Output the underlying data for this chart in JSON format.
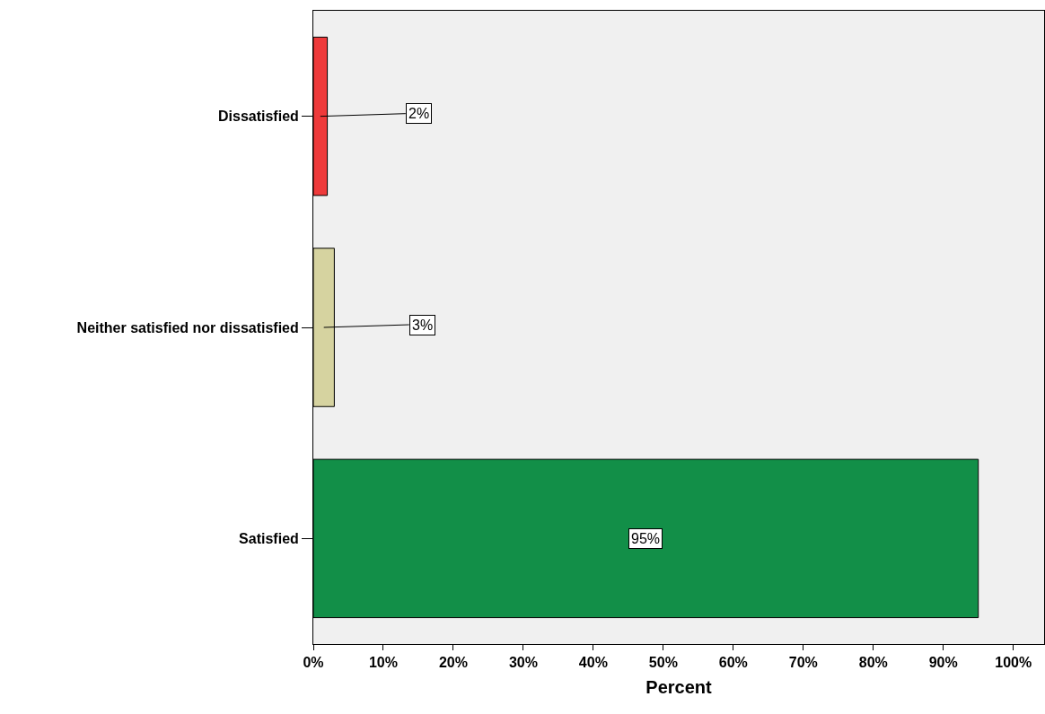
{
  "chart_data": {
    "type": "bar",
    "orientation": "horizontal",
    "categories": [
      "Dissatisfied",
      "Neither satisfied nor dissatisfied",
      "Satisfied"
    ],
    "values": [
      2,
      3,
      95
    ],
    "colors": [
      "#ee3a3b",
      "#d6d3a0",
      "#128f48"
    ],
    "value_labels": [
      "2%",
      "3%",
      "95%"
    ],
    "xlabel": "Percent",
    "xlim": [
      0,
      104.4
    ],
    "xticks": [
      {
        "value": 0,
        "label": "0%"
      },
      {
        "value": 10,
        "label": "10%"
      },
      {
        "value": 20,
        "label": "20%"
      },
      {
        "value": 30,
        "label": "30%"
      },
      {
        "value": 40,
        "label": "40%"
      },
      {
        "value": 50,
        "label": "50%"
      },
      {
        "value": 60,
        "label": "60%"
      },
      {
        "value": 70,
        "label": "70%"
      },
      {
        "value": 80,
        "label": "80%"
      },
      {
        "value": 90,
        "label": "90%"
      },
      {
        "value": 100,
        "label": "100%"
      }
    ],
    "grid": false,
    "legend": false
  }
}
